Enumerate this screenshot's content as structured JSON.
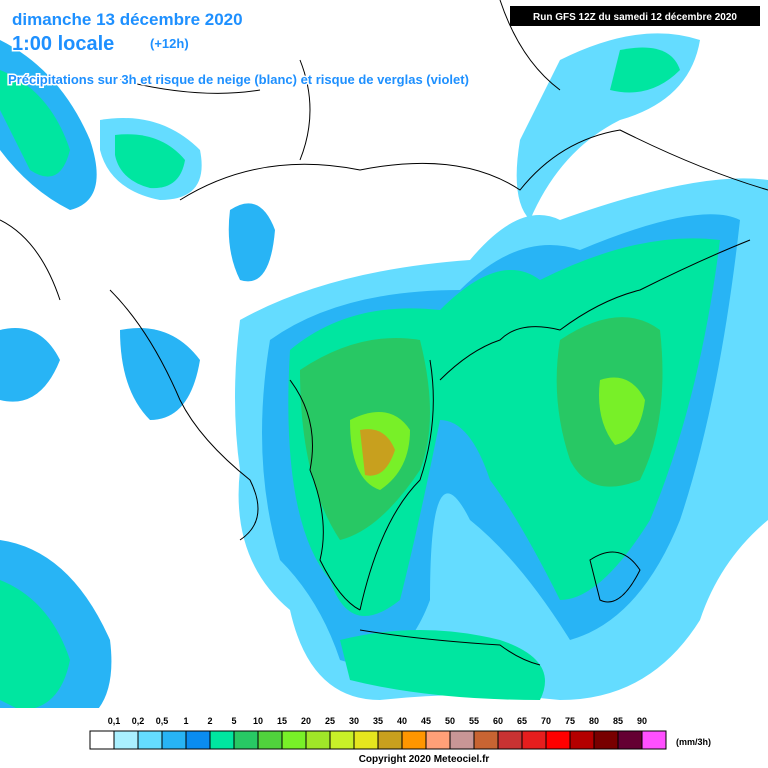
{
  "header": {
    "date": "dimanche 13 décembre 2020",
    "time": "1:00 locale",
    "offset": "(+12h)",
    "subtitle": "Précipitations sur 3h et risque de neige (blanc) et risque de verglas (violet)",
    "run": "Run GFS 12Z du samedi 12 décembre 2020"
  },
  "legend": {
    "labels": [
      "0,1",
      "0,2",
      "0,5",
      "1",
      "2",
      "5",
      "10",
      "15",
      "20",
      "25",
      "30",
      "35",
      "40",
      "45",
      "50",
      "55",
      "60",
      "65",
      "70",
      "75",
      "80",
      "85",
      "90"
    ],
    "colors": [
      "#ffffff",
      "#aaf0ff",
      "#64dcff",
      "#28b4f5",
      "#0a8cf0",
      "#00e6a0",
      "#28c864",
      "#50d23c",
      "#78f028",
      "#a0e628",
      "#c8f028",
      "#e6e61e",
      "#c8a01e",
      "#ff9600",
      "#ffa078",
      "#c89696",
      "#c86432",
      "#c83232",
      "#e61e1e",
      "#ff0000",
      "#b40000",
      "#780000",
      "#640032",
      "#ff50ff"
    ],
    "unit": "(mm/3h)"
  },
  "footer": {
    "copyright": "Copyright 2020 Meteociel.fr"
  }
}
